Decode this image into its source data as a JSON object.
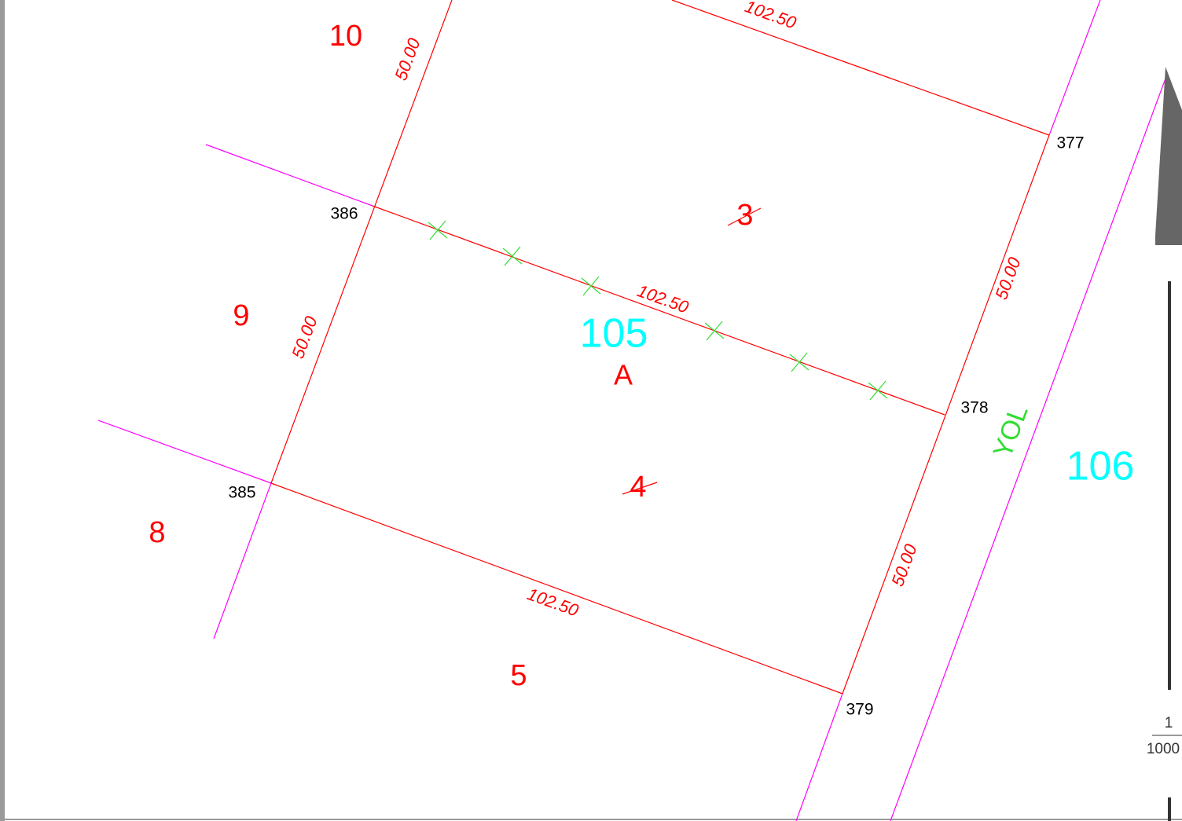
{
  "parcels": [
    "10",
    "9",
    "8",
    "5",
    "3",
    "4"
  ],
  "block": {
    "number": "105",
    "parcel": "A"
  },
  "adjacent_block": "106",
  "points": [
    "377",
    "378",
    "379",
    "385",
    "386"
  ],
  "dimensions": [
    "102.50",
    "50.00",
    "102.50",
    "50.00",
    "50.00",
    "50.00",
    "102.50"
  ],
  "road": "YOL",
  "scale": {
    "numerator": "1",
    "denominator": "1000"
  }
}
